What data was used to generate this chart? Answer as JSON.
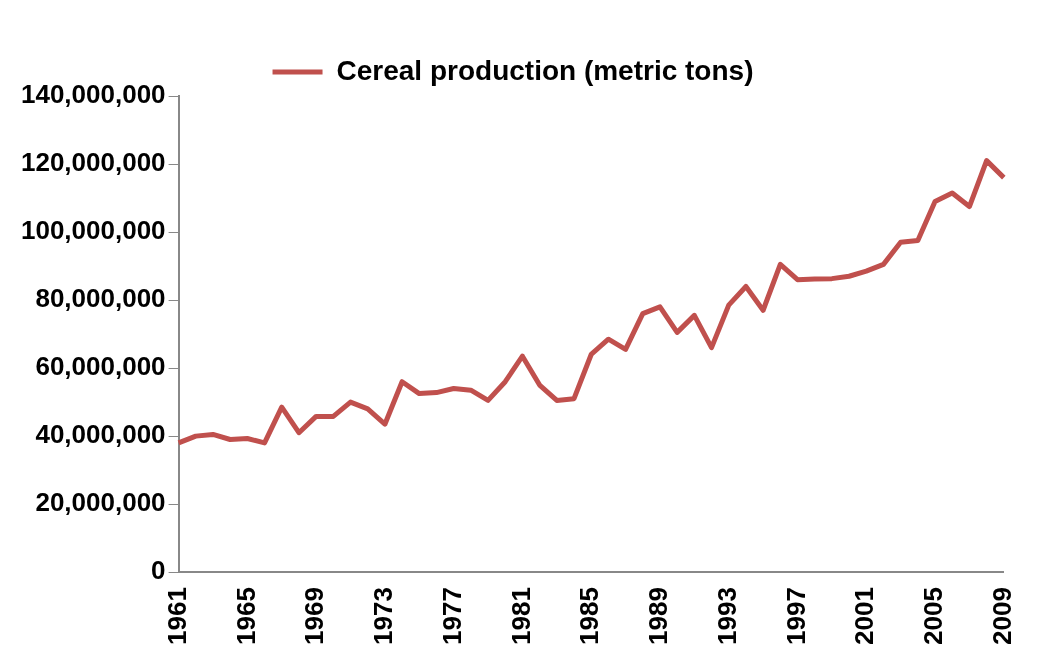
{
  "chart_data": {
    "type": "line",
    "categories": [
      "1961",
      null,
      null,
      null,
      "1965",
      null,
      null,
      null,
      "1969",
      null,
      null,
      null,
      "1973",
      null,
      null,
      null,
      "1977",
      null,
      null,
      null,
      "1981",
      null,
      null,
      null,
      "1985",
      null,
      null,
      null,
      "1989",
      null,
      null,
      null,
      "1993",
      null,
      null,
      null,
      "1997",
      null,
      null,
      null,
      "2001",
      null,
      null,
      null,
      "2005",
      null,
      null,
      null,
      "2009"
    ],
    "series": [
      {
        "name": "Cereal production (metric tons)",
        "color": "#c0504d",
        "values": [
          38000000,
          40000000,
          40500000,
          39000000,
          39300000,
          38000000,
          48500000,
          41000000,
          45800000,
          45800000,
          50000000,
          48000000,
          43500000,
          56000000,
          52500000,
          52800000,
          54000000,
          53500000,
          50500000,
          56000000,
          63500000,
          55000000,
          50500000,
          51000000,
          64000000,
          68500000,
          65500000,
          76000000,
          78000000,
          70500000,
          75500000,
          66000000,
          78500000,
          84000000,
          77000000,
          90500000,
          86000000,
          86200000,
          86300000,
          87000000,
          88500000,
          90500000,
          97000000,
          97500000,
          109000000,
          111500000,
          107500000,
          121000000,
          116000000
        ]
      }
    ],
    "ylim": [
      0,
      140000000
    ],
    "yticks": [
      0,
      {
        "value": 20000000,
        "label": "20,000,000"
      },
      {
        "value": 40000000,
        "label": "40,000,000"
      },
      {
        "value": 60000000,
        "label": "60,000,000"
      },
      {
        "value": 80000000,
        "label": "80,000,000"
      },
      {
        "value": 100000000,
        "label": "100,000,000"
      },
      {
        "value": 120000000,
        "label": "120,000,000"
      },
      {
        "value": 140000000,
        "label": "140,000,000"
      }
    ],
    "grid": false,
    "legend": "top",
    "marker": "none"
  }
}
